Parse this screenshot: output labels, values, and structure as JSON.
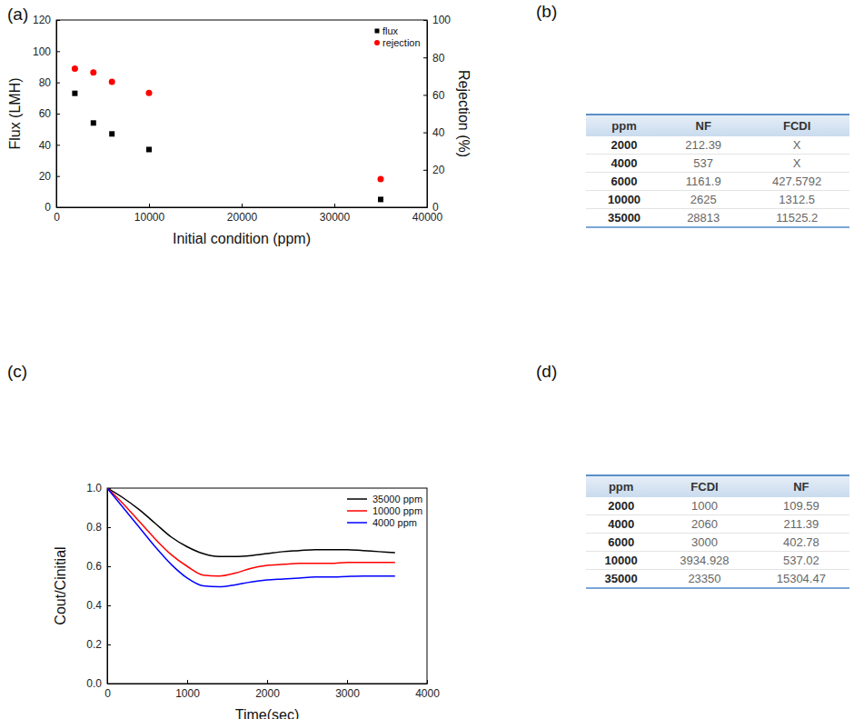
{
  "chart_data": [
    {
      "type": "scatter",
      "title": "(a)",
      "xlabel": "Initial condition (ppm)",
      "ylabel": "Flux (LMH)",
      "y2label": "Rejection (%)",
      "x": [
        2000,
        4000,
        6000,
        10000,
        35000
      ],
      "series": [
        {
          "name": "flux",
          "color": "#000000",
          "marker": "square",
          "values": [
            73,
            54,
            47,
            37,
            5
          ]
        },
        {
          "name": "rejection",
          "color": "#ff0000",
          "marker": "circle",
          "axis": "y2",
          "values": [
            74,
            72,
            67,
            61,
            15
          ]
        }
      ],
      "xlim": [
        0,
        40000
      ],
      "xticks": [
        0,
        10000,
        20000,
        30000,
        40000
      ],
      "ylim": [
        0,
        120
      ],
      "yticks": [
        0,
        20,
        40,
        60,
        80,
        100,
        120
      ],
      "y2lim": [
        0,
        100
      ],
      "y2ticks": [
        0,
        20,
        40,
        60,
        80,
        100
      ],
      "legend": "upper right"
    },
    {
      "type": "line",
      "title": "(c)",
      "xlabel": "Time(sec)",
      "ylabel": "Cout/Cinitial",
      "x": [
        0,
        200,
        400,
        600,
        800,
        1000,
        1200,
        1400,
        1600,
        1800,
        2000,
        2200,
        2400,
        2600,
        2800,
        3000,
        3200,
        3400,
        3600
      ],
      "series": [
        {
          "name": "35000 ppm",
          "color": "#000000",
          "values": [
            1.0,
            0.95,
            0.89,
            0.82,
            0.75,
            0.7,
            0.665,
            0.65,
            0.65,
            0.655,
            0.665,
            0.675,
            0.68,
            0.685,
            0.685,
            0.685,
            0.68,
            0.675,
            0.67
          ]
        },
        {
          "name": "10000 ppm",
          "color": "#ff0000",
          "values": [
            1.0,
            0.92,
            0.83,
            0.74,
            0.66,
            0.6,
            0.555,
            0.55,
            0.565,
            0.59,
            0.605,
            0.61,
            0.615,
            0.615,
            0.615,
            0.62,
            0.62,
            0.62,
            0.62
          ]
        },
        {
          "name": "4000 ppm",
          "color": "#0000ff",
          "values": [
            1.0,
            0.9,
            0.8,
            0.7,
            0.61,
            0.54,
            0.5,
            0.495,
            0.505,
            0.52,
            0.53,
            0.535,
            0.54,
            0.545,
            0.545,
            0.548,
            0.55,
            0.55,
            0.55
          ]
        }
      ],
      "xlim": [
        0,
        4000
      ],
      "xticks": [
        0,
        1000,
        2000,
        3000,
        4000
      ],
      "ylim": [
        0,
        1.0
      ],
      "yticks": [
        {
          "value": 0,
          "label": "0.0"
        },
        {
          "value": 0.2,
          "label": "0.2"
        },
        {
          "value": 0.4,
          "label": "0.4"
        },
        {
          "value": 0.6,
          "label": "0.6"
        },
        {
          "value": 0.8,
          "label": "0.8"
        },
        {
          "value": 1.0,
          "label": "1.0"
        }
      ],
      "legend": "upper right"
    }
  ],
  "tables": [
    {
      "title": "(b)",
      "header": [
        "ppm",
        "NF",
        "FCDI"
      ],
      "rows": [
        [
          "2000",
          "212.39",
          "X"
        ],
        [
          "4000",
          "537",
          "X"
        ],
        [
          "6000",
          "1161.9",
          "427.5792"
        ],
        [
          "10000",
          "2625",
          "1312.5"
        ],
        [
          "35000",
          "28813",
          "11525.2"
        ]
      ]
    },
    {
      "title": "(d)",
      "header": [
        "ppm",
        "FCDI",
        "NF"
      ],
      "rows": [
        [
          "2000",
          "1000",
          "109.59"
        ],
        [
          "4000",
          "2060",
          "211.39"
        ],
        [
          "6000",
          "3000",
          "402.78"
        ],
        [
          "10000",
          "3934.928",
          "537.02"
        ],
        [
          "35000",
          "23350",
          "15304.47"
        ]
      ]
    }
  ]
}
